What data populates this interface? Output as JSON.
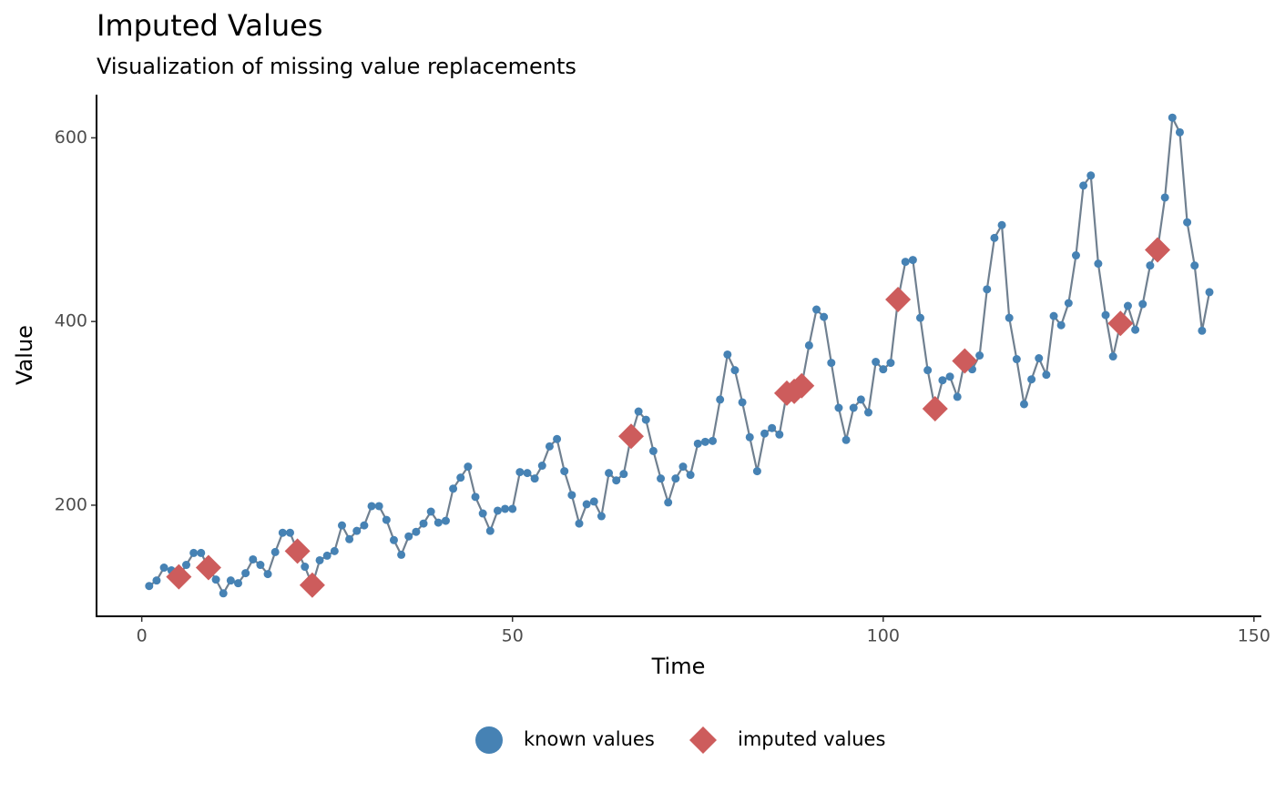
{
  "chart_data": {
    "type": "line",
    "title": "Imputed Values",
    "subtitle": "Visualization of missing value replacements",
    "x_label": "Time",
    "y_label": "Value",
    "xlim": [
      -6.1,
      151
    ],
    "xticks": [
      0,
      50,
      100,
      150
    ],
    "ylim": [
      79,
      647
    ],
    "yticks": [
      200,
      400,
      600
    ],
    "line_color": "#708090",
    "legend": "bottom",
    "series": [
      {
        "name": "known values",
        "color": "#4682b4",
        "shape": "circle",
        "x": [
          1,
          2,
          3,
          4,
          5,
          6,
          7,
          8,
          9,
          10,
          11,
          12,
          13,
          14,
          15,
          16,
          17,
          18,
          19,
          20,
          21,
          22,
          23,
          24,
          25,
          26,
          27,
          28,
          29,
          30,
          31,
          32,
          33,
          34,
          35,
          36,
          37,
          38,
          39,
          40,
          41,
          42,
          43,
          44,
          45,
          46,
          47,
          48,
          49,
          50,
          51,
          52,
          53,
          54,
          55,
          56,
          57,
          58,
          59,
          60,
          61,
          62,
          63,
          64,
          65,
          66,
          67,
          68,
          69,
          70,
          71,
          72,
          73,
          74,
          75,
          76,
          77,
          78,
          79,
          80,
          81,
          82,
          83,
          84,
          85,
          86,
          87,
          88,
          89,
          90,
          91,
          92,
          93,
          94,
          95,
          96,
          97,
          98,
          99,
          100,
          101,
          102,
          103,
          104,
          105,
          106,
          107,
          108,
          109,
          110,
          111,
          112,
          113,
          114,
          115,
          116,
          117,
          118,
          119,
          120,
          121,
          122,
          123,
          124,
          125,
          126,
          127,
          128,
          129,
          130,
          131,
          132,
          133,
          134,
          135,
          136,
          137,
          138,
          139,
          140,
          141,
          142,
          143,
          144
        ],
        "values": [
          112,
          118,
          132,
          129,
          null,
          135,
          148,
          148,
          null,
          119,
          104,
          118,
          115,
          126,
          141,
          135,
          125,
          149,
          170,
          170,
          null,
          133,
          null,
          140,
          145,
          150,
          178,
          163,
          172,
          178,
          199,
          199,
          184,
          162,
          146,
          166,
          171,
          180,
          193,
          181,
          183,
          218,
          230,
          242,
          209,
          191,
          172,
          194,
          196,
          196,
          236,
          235,
          229,
          243,
          264,
          272,
          237,
          211,
          180,
          201,
          204,
          188,
          235,
          227,
          234,
          null,
          302,
          293,
          259,
          229,
          203,
          229,
          242,
          233,
          267,
          269,
          270,
          315,
          364,
          347,
          312,
          274,
          237,
          278,
          284,
          277,
          null,
          null,
          null,
          374,
          413,
          405,
          355,
          306,
          271,
          306,
          315,
          301,
          356,
          348,
          355,
          null,
          465,
          467,
          404,
          347,
          null,
          336,
          340,
          318,
          null,
          348,
          363,
          435,
          491,
          505,
          404,
          359,
          310,
          337,
          360,
          342,
          406,
          396,
          420,
          472,
          548,
          559,
          463,
          407,
          362,
          null,
          417,
          391,
          419,
          461,
          null,
          535,
          622,
          606,
          508,
          461,
          390,
          432
        ]
      },
      {
        "name": "imputed values",
        "color": "#cd5c5c",
        "shape": "diamond",
        "x": [
          5,
          9,
          21,
          23,
          66,
          87,
          88,
          89,
          102,
          107,
          111,
          132,
          137
        ],
        "values": [
          122,
          132,
          150,
          113,
          275,
          322,
          324,
          330,
          424,
          305,
          357,
          398,
          478
        ]
      }
    ]
  }
}
